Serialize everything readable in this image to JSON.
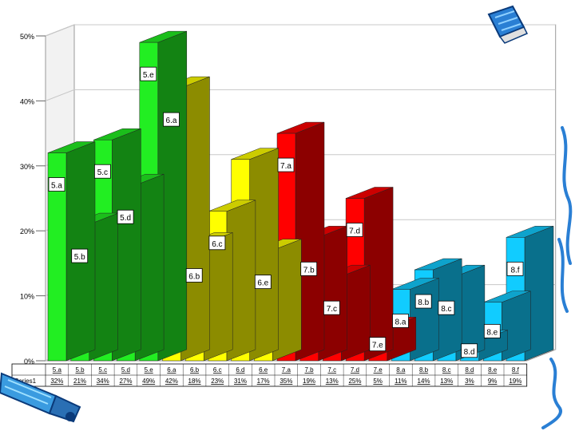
{
  "chart_data": {
    "type": "bar",
    "title": "",
    "xlabel": "",
    "ylabel": "",
    "ylim": [
      0,
      50
    ],
    "yticks": [
      "0%",
      "10%",
      "20%",
      "30%",
      "40%",
      "50%"
    ],
    "grid": true,
    "three_d": true,
    "categories": [
      "5.a",
      "5.b",
      "5.c",
      "5.d",
      "5.e",
      "6.a",
      "6.b",
      "6.c",
      "6.d",
      "6.e",
      "7.a",
      "7.b",
      "7.c",
      "7.d",
      "7.e",
      "8.a",
      "8.b",
      "8.c",
      "8.d",
      "8.e",
      "8.f"
    ],
    "series": [
      {
        "name": "Series1",
        "values": [
          32,
          21,
          34,
          27,
          49,
          42,
          18,
          23,
          31,
          17,
          35,
          19,
          13,
          25,
          5,
          11,
          14,
          13,
          3,
          9,
          19
        ],
        "value_labels": [
          "32%",
          "21%",
          "34%",
          "27%",
          "49%",
          "42%",
          "18%",
          "23%",
          "31%",
          "17%",
          "35%",
          "19%",
          "13%",
          "25%",
          "5%",
          "11%",
          "14%",
          "13%",
          "3%",
          "9%",
          "19%"
        ]
      }
    ],
    "group_colors": {
      "5": "#22ee22",
      "6": "#ffff00",
      "7": "#ff0000",
      "8": "#11ccff"
    },
    "labeled_bars": [
      "5.a",
      "5.b",
      "5.c",
      "5.d",
      "5.e",
      "6.a",
      "6.b",
      "6.c",
      "6.e",
      "7.a",
      "7.b",
      "7.c",
      "7.d",
      "7.e",
      "8.a",
      "8.b",
      "8.c",
      "8.d",
      "8.e",
      "8.f"
    ]
  },
  "decorations": {
    "top_right": "pencil-icon",
    "bottom_left": "crayon-icon",
    "right_edge": "scribble-icon"
  }
}
